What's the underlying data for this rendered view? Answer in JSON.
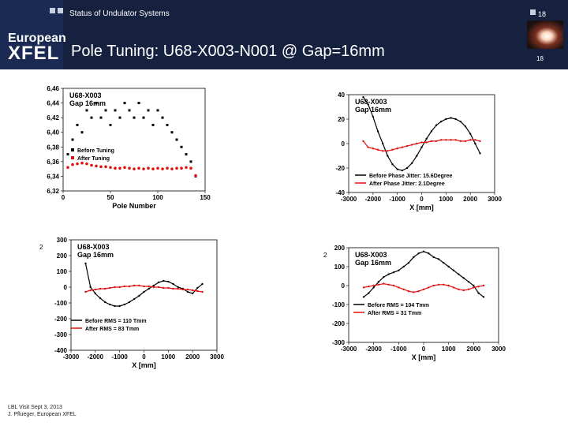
{
  "header": {
    "subtitle": "Status of Undulator Systems",
    "logo_top": "European",
    "logo_bottom": "XFEL",
    "page_number": "18",
    "page_number_small": "18",
    "background_color": "#15213f"
  },
  "slide": {
    "title": "Pole Tuning: U68-X003-N001 @ Gap=16mm"
  },
  "footer": {
    "line1": "LBL Visit Sept 3, 2013",
    "line2": "J. Pflueger, European XFEL"
  },
  "chart_data": [
    {
      "type": "scatter",
      "annotation": "U68-X003\nGap 16mm",
      "xlabel": "Pole Number",
      "ylabel": "",
      "xlim": [
        0,
        150
      ],
      "ylim": [
        6.32,
        6.46
      ],
      "x_ticks": [
        "0",
        "50",
        "100",
        "150"
      ],
      "y_ticks": [
        "6,32",
        "6,34",
        "6,36",
        "6,38",
        "6,40",
        "6,42",
        "6,44",
        "6,46"
      ],
      "legend_position": "center",
      "series": [
        {
          "name": "Before Tuning",
          "color": "#000000",
          "marker": "square",
          "x": [
            5,
            10,
            15,
            20,
            25,
            30,
            35,
            40,
            45,
            50,
            55,
            60,
            65,
            70,
            75,
            80,
            85,
            90,
            95,
            100,
            105,
            110,
            115,
            120,
            125,
            130,
            135,
            140
          ],
          "y": [
            6.37,
            6.39,
            6.41,
            6.4,
            6.43,
            6.42,
            6.44,
            6.42,
            6.43,
            6.41,
            6.43,
            6.42,
            6.44,
            6.43,
            6.42,
            6.44,
            6.42,
            6.43,
            6.41,
            6.43,
            6.42,
            6.41,
            6.4,
            6.39,
            6.38,
            6.37,
            6.36,
            6.34
          ]
        },
        {
          "name": "After Tuning",
          "color": "#e01010",
          "marker": "circle",
          "x": [
            5,
            10,
            15,
            20,
            25,
            30,
            35,
            40,
            45,
            50,
            55,
            60,
            65,
            70,
            75,
            80,
            85,
            90,
            95,
            100,
            105,
            110,
            115,
            120,
            125,
            130,
            135,
            140
          ],
          "y": [
            6.352,
            6.356,
            6.357,
            6.358,
            6.357,
            6.355,
            6.354,
            6.353,
            6.353,
            6.352,
            6.351,
            6.351,
            6.352,
            6.351,
            6.35,
            6.351,
            6.35,
            6.351,
            6.35,
            6.351,
            6.35,
            6.351,
            6.35,
            6.351,
            6.351,
            6.352,
            6.351,
            6.341
          ]
        }
      ]
    },
    {
      "type": "line",
      "annotation": "U68-X003\nGap 16mm",
      "xlabel": "X [mm]",
      "ylabel": "",
      "xlim": [
        -3000,
        3000
      ],
      "ylim": [
        -40,
        40
      ],
      "x_ticks": [
        "-3000",
        "-2000",
        "-1000",
        "0",
        "1000",
        "2000",
        "3000"
      ],
      "y_ticks": [
        "-40",
        "-20",
        "0",
        "20",
        "40"
      ],
      "legend_position": "bottom",
      "series": [
        {
          "name": "Before Phase Jitter: 15.6Degree",
          "color": "#000000",
          "x": [
            -2400,
            -2200,
            -2000,
            -1800,
            -1600,
            -1400,
            -1200,
            -1000,
            -800,
            -600,
            -400,
            -200,
            0,
            200,
            400,
            600,
            800,
            1000,
            1200,
            1400,
            1600,
            1800,
            2000,
            2200,
            2400
          ],
          "y": [
            38,
            32,
            22,
            10,
            0,
            -10,
            -17,
            -21,
            -22,
            -20,
            -16,
            -10,
            -3,
            4,
            10,
            15,
            18,
            20,
            21,
            20,
            18,
            14,
            8,
            0,
            -8
          ]
        },
        {
          "name": "After Phase Jitter: 2.1Degree",
          "color": "#e01010",
          "x": [
            -2400,
            -2200,
            -2000,
            -1800,
            -1600,
            -1400,
            -1200,
            -1000,
            -800,
            -600,
            -400,
            -200,
            0,
            200,
            400,
            600,
            800,
            1000,
            1200,
            1400,
            1600,
            1800,
            2000,
            2200,
            2400
          ],
          "y": [
            2,
            -3,
            -4,
            -5,
            -6,
            -6,
            -5,
            -4,
            -3,
            -2,
            -1,
            0,
            1,
            1,
            2,
            2,
            3,
            3,
            3,
            3,
            2,
            2,
            3,
            3,
            2
          ]
        }
      ]
    },
    {
      "type": "line",
      "annotation": "U68-X003\nGap 16mm",
      "xlabel": "X [mm]",
      "ylabel": "2",
      "xlim": [
        -3000,
        3000
      ],
      "ylim": [
        -400,
        300
      ],
      "x_ticks": [
        "-3000",
        "-2000",
        "-1000",
        "0",
        "1000",
        "2000",
        "3000"
      ],
      "y_ticks": [
        "-400",
        "-300",
        "-200",
        "-100",
        "0",
        "100",
        "200",
        "300"
      ],
      "legend_position": "bottom",
      "series": [
        {
          "name": "Before RMS = 110 Tmm",
          "color": "#000000",
          "x": [
            -2400,
            -2200,
            -2000,
            -1800,
            -1600,
            -1400,
            -1200,
            -1000,
            -800,
            -600,
            -400,
            -200,
            0,
            200,
            400,
            600,
            800,
            1000,
            1200,
            1400,
            1600,
            1800,
            2000,
            2200,
            2400
          ],
          "y": [
            150,
            0,
            -40,
            -70,
            -95,
            -110,
            -120,
            -120,
            -110,
            -95,
            -75,
            -55,
            -30,
            -10,
            10,
            30,
            40,
            35,
            20,
            0,
            -10,
            -30,
            -40,
            -5,
            20
          ]
        },
        {
          "name": "After RMS = 83 Tmm",
          "color": "#e01010",
          "x": [
            -2400,
            -2200,
            -2000,
            -1800,
            -1600,
            -1400,
            -1200,
            -1000,
            -800,
            -600,
            -400,
            -200,
            0,
            200,
            400,
            600,
            800,
            1000,
            1200,
            1400,
            1600,
            1800,
            2000,
            2200,
            2400
          ],
          "y": [
            -30,
            -20,
            -15,
            -10,
            -10,
            -5,
            0,
            0,
            5,
            5,
            10,
            10,
            5,
            5,
            0,
            0,
            -5,
            -5,
            -10,
            -10,
            -15,
            -15,
            -20,
            -25,
            -30
          ]
        }
      ]
    },
    {
      "type": "line",
      "annotation": "U68-X003\nGap 16mm",
      "xlabel": "X [mm]",
      "ylabel": "2",
      "xlim": [
        -3000,
        3000
      ],
      "ylim": [
        -300,
        200
      ],
      "x_ticks": [
        "-3000",
        "-2000",
        "-1000",
        "0",
        "1000",
        "2000",
        "3000"
      ],
      "y_ticks": [
        "-300",
        "-200",
        "-100",
        "0",
        "100",
        "200"
      ],
      "legend_position": "bottom",
      "series": [
        {
          "name": "Before RMS = 104 Tmm",
          "color": "#000000",
          "x": [
            -2400,
            -2200,
            -2000,
            -1800,
            -1600,
            -1400,
            -1200,
            -1000,
            -800,
            -600,
            -400,
            -200,
            0,
            200,
            400,
            600,
            800,
            1000,
            1200,
            1400,
            1600,
            1800,
            2000,
            2200,
            2400
          ],
          "y": [
            -60,
            -40,
            -10,
            20,
            45,
            60,
            70,
            80,
            100,
            120,
            150,
            170,
            180,
            170,
            150,
            140,
            120,
            100,
            80,
            60,
            40,
            20,
            0,
            -40,
            -60
          ]
        },
        {
          "name": "After RMS = 31 Tmm",
          "color": "#e01010",
          "x": [
            -2400,
            -2200,
            -2000,
            -1800,
            -1600,
            -1400,
            -1200,
            -1000,
            -800,
            -600,
            -400,
            -200,
            0,
            200,
            400,
            600,
            800,
            1000,
            1200,
            1400,
            1600,
            1800,
            2000,
            2200,
            2400
          ],
          "y": [
            -10,
            -5,
            0,
            5,
            10,
            5,
            0,
            -10,
            -20,
            -30,
            -35,
            -30,
            -20,
            -10,
            0,
            5,
            5,
            0,
            -10,
            -20,
            -25,
            -20,
            -10,
            -5,
            0
          ]
        }
      ]
    }
  ]
}
